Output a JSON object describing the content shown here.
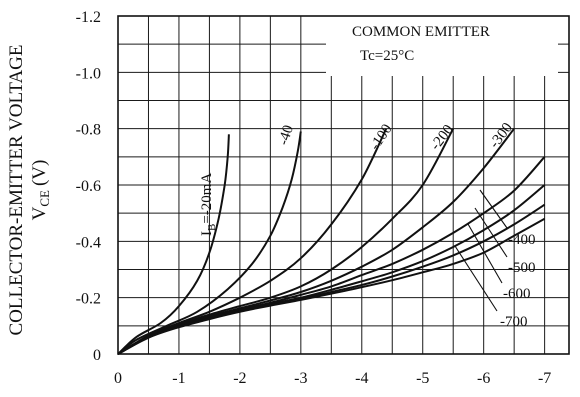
{
  "chart_data": {
    "type": "line",
    "title": "",
    "ylabel_line1": "COLLECTOR-EMITTER VOLTAGE",
    "ylabel_line2_main": "V",
    "ylabel_line2_sub": "CE",
    "ylabel_line2_unit": "(V)",
    "xlabel": "",
    "x_ticks": [
      "0",
      "-1",
      "-2",
      "-3",
      "-4",
      "-5",
      "-6",
      "-7"
    ],
    "y_ticks": [
      "0",
      "-0.2",
      "-0.4",
      "-0.6",
      "-0.8",
      "-1.0",
      "-1.2"
    ],
    "xlim": [
      0,
      -7.4
    ],
    "ylim": [
      0,
      -1.2
    ],
    "grid": true,
    "annotations": {
      "line1": "COMMON EMITTER",
      "line2": "Tc=25°C"
    },
    "series": [
      {
        "name": "I_B=-20mA",
        "label_main": "I",
        "label_sub": "B",
        "label_rest": "=-20mA",
        "x": [
          0,
          -0.3,
          -0.7,
          -1.0,
          -1.3,
          -1.5,
          -1.65,
          -1.75,
          -1.8,
          -1.82
        ],
        "y": [
          0,
          -0.06,
          -0.11,
          -0.17,
          -0.26,
          -0.36,
          -0.48,
          -0.6,
          -0.7,
          -0.78
        ]
      },
      {
        "name": "-40",
        "label": "-40",
        "x": [
          0,
          -0.3,
          -0.8,
          -1.3,
          -1.8,
          -2.2,
          -2.5,
          -2.7,
          -2.85,
          -2.95,
          -3.0
        ],
        "y": [
          0,
          -0.05,
          -0.1,
          -0.15,
          -0.23,
          -0.32,
          -0.42,
          -0.52,
          -0.62,
          -0.72,
          -0.79
        ]
      },
      {
        "name": "-100",
        "label": "-100",
        "x": [
          0,
          -0.5,
          -1.0,
          -1.5,
          -2.0,
          -2.5,
          -3.0,
          -3.5,
          -4.0,
          -4.4
        ],
        "y": [
          0,
          -0.065,
          -0.11,
          -0.15,
          -0.2,
          -0.26,
          -0.34,
          -0.46,
          -0.62,
          -0.8
        ]
      },
      {
        "name": "-200",
        "label": "-200",
        "x": [
          0,
          -0.5,
          -1.0,
          -1.5,
          -2.0,
          -2.5,
          -3.0,
          -3.5,
          -4.0,
          -4.5,
          -5.0,
          -5.5
        ],
        "y": [
          0,
          -0.062,
          -0.105,
          -0.14,
          -0.17,
          -0.2,
          -0.24,
          -0.3,
          -0.38,
          -0.48,
          -0.6,
          -0.8
        ]
      },
      {
        "name": "-300",
        "label": "-300",
        "x": [
          0,
          -0.5,
          -1.0,
          -1.5,
          -2.0,
          -2.5,
          -3.0,
          -3.5,
          -4.0,
          -4.5,
          -5.0,
          -5.5,
          -6.0,
          -6.5
        ],
        "y": [
          0,
          -0.062,
          -0.1,
          -0.135,
          -0.162,
          -0.19,
          -0.22,
          -0.26,
          -0.31,
          -0.37,
          -0.45,
          -0.54,
          -0.66,
          -0.8
        ]
      },
      {
        "name": "-400",
        "label": "-400",
        "x": [
          0,
          -0.5,
          -1.0,
          -1.5,
          -2.0,
          -2.5,
          -3.0,
          -3.5,
          -4.0,
          -4.5,
          -5.0,
          -5.5,
          -6.0,
          -6.5,
          -7.0
        ],
        "y": [
          0,
          -0.061,
          -0.1,
          -0.13,
          -0.158,
          -0.182,
          -0.21,
          -0.24,
          -0.28,
          -0.32,
          -0.37,
          -0.43,
          -0.5,
          -0.58,
          -0.7
        ]
      },
      {
        "name": "-500",
        "label": "-500",
        "x": [
          0,
          -0.5,
          -1.0,
          -1.5,
          -2.0,
          -2.5,
          -3.0,
          -3.5,
          -4.0,
          -4.5,
          -5.0,
          -5.5,
          -6.0,
          -6.5,
          -7.0
        ],
        "y": [
          0,
          -0.06,
          -0.098,
          -0.128,
          -0.155,
          -0.178,
          -0.2,
          -0.228,
          -0.258,
          -0.29,
          -0.33,
          -0.38,
          -0.44,
          -0.51,
          -0.6
        ]
      },
      {
        "name": "-600",
        "label": "-600",
        "x": [
          0,
          -0.5,
          -1.0,
          -1.5,
          -2.0,
          -2.5,
          -3.0,
          -3.5,
          -4.0,
          -4.5,
          -5.0,
          -5.5,
          -6.0,
          -6.5,
          -7.0
        ],
        "y": [
          0,
          -0.059,
          -0.097,
          -0.126,
          -0.152,
          -0.175,
          -0.196,
          -0.22,
          -0.245,
          -0.275,
          -0.31,
          -0.35,
          -0.4,
          -0.46,
          -0.53
        ]
      },
      {
        "name": "-700",
        "label": "-700",
        "x": [
          0,
          -0.5,
          -1.0,
          -1.5,
          -2.0,
          -2.5,
          -3.0,
          -3.5,
          -4.0,
          -4.5,
          -5.0,
          -5.5,
          -6.0,
          -6.5,
          -7.0
        ],
        "y": [
          0,
          -0.058,
          -0.095,
          -0.124,
          -0.15,
          -0.172,
          -0.192,
          -0.214,
          -0.237,
          -0.262,
          -0.29,
          -0.32,
          -0.36,
          -0.42,
          -0.48
        ]
      }
    ]
  }
}
